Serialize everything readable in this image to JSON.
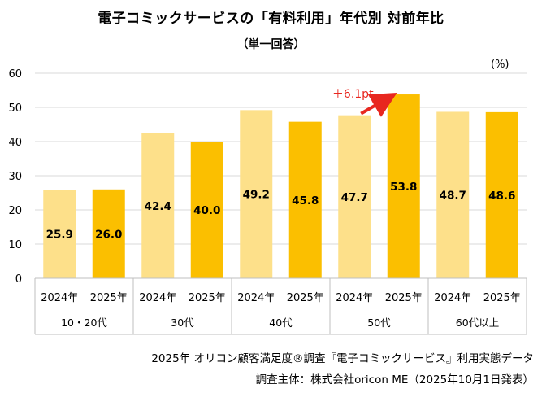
{
  "title": "電子コミックサービスの「有料利用」年代別 対前年比",
  "subtitle": "（単一回答）",
  "unit": "(%)",
  "annotation": "＋6.1pt",
  "footer_line1": "2025年 オリコン顧客満足度®調査『電子コミックサービス』利用実態データ",
  "footer_line2": "調査主体：株式会社oricon ME（2025年10月1日発表）",
  "colors": {
    "y2024": "#fde08a",
    "y2025": "#fbbf00",
    "arrow": "#e8271f",
    "grid": "#d9d9d9"
  },
  "chart_data": {
    "type": "bar",
    "title": "電子コミックサービスの「有料利用」年代別 対前年比",
    "ylabel": "(%)",
    "ylim": [
      0,
      60
    ],
    "yticks": [
      0,
      10,
      20,
      30,
      40,
      50,
      60
    ],
    "groups": [
      "10・20代",
      "30代",
      "40代",
      "50代",
      "60代以上"
    ],
    "series": [
      {
        "name": "2024年",
        "values": [
          25.9,
          42.4,
          49.2,
          47.7,
          48.7
        ]
      },
      {
        "name": "2025年",
        "values": [
          26.0,
          40.0,
          45.8,
          53.8,
          48.6
        ]
      }
    ],
    "annotations": [
      {
        "group": "50代",
        "text": "＋6.1pt",
        "from": "2024年",
        "to": "2025年"
      }
    ]
  }
}
